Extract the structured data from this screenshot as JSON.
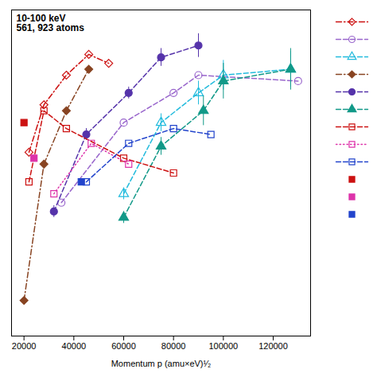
{
  "chart_data": {
    "type": "line",
    "title": "10-100 keV\n561, 923 atoms",
    "xlabel": "Momentum p (amu×eV)¹⁄₂",
    "xlim": [
      15000,
      135000
    ],
    "xticks": [
      20000,
      40000,
      60000,
      80000,
      100000,
      120000
    ],
    "ylim": [
      0.0,
      1.1
    ],
    "tick_labels": "x",
    "grid": false,
    "legend": "right",
    "series": [
      {
        "color": "#cc1111",
        "marker": "diamond-open",
        "line_style": "dashdot",
        "x": [
          22000,
          28000,
          37000,
          46000,
          54000
        ],
        "values": [
          0.62,
          0.78,
          0.88,
          0.95,
          0.92
        ]
      },
      {
        "color": "#9966cc",
        "marker": "circle-open",
        "line_style": "dashed",
        "x": [
          35000,
          60000,
          80000,
          90000,
          130000
        ],
        "values": [
          0.45,
          0.72,
          0.82,
          0.88,
          0.86
        ]
      },
      {
        "color": "#22bbdd",
        "marker": "triangle-open",
        "line_style": "dashed",
        "x": [
          60000,
          75000,
          90000,
          100000,
          127000
        ],
        "values": [
          0.48,
          0.72,
          0.82,
          0.88,
          0.9
        ],
        "yerr": [
          0.02,
          0.03,
          0.04,
          0.05,
          0.06
        ]
      },
      {
        "color": "#884422",
        "marker": "diamond",
        "line_style": "dashdot",
        "x": [
          20000,
          28000,
          37000,
          46000
        ],
        "values": [
          0.12,
          0.58,
          0.76,
          0.9
        ]
      },
      {
        "color": "#5533aa",
        "marker": "circle",
        "line_style": "dashed",
        "x": [
          32000,
          45000,
          62000,
          75000,
          90000
        ],
        "values": [
          0.42,
          0.68,
          0.82,
          0.94,
          0.98
        ],
        "yerr": [
          0.02,
          0.02,
          0.02,
          0.03,
          0.04
        ]
      },
      {
        "color": "#119988",
        "marker": "triangle",
        "line_style": "dashed",
        "x": [
          60000,
          75000,
          92000,
          100000,
          127000
        ],
        "values": [
          0.4,
          0.64,
          0.76,
          0.86,
          0.9
        ],
        "yerr": [
          0.02,
          0.03,
          0.05,
          0.06,
          0.07
        ]
      },
      {
        "color": "#cc1111",
        "marker": "square-open",
        "line_style": "dashed",
        "x": [
          22000,
          28000,
          37000,
          60000,
          80000
        ],
        "values": [
          0.52,
          0.76,
          0.7,
          0.6,
          0.55
        ]
      },
      {
        "color": "#dd33aa",
        "marker": "square-open",
        "line_style": "dotted",
        "x": [
          32000,
          47000,
          62000
        ],
        "values": [
          0.48,
          0.65,
          0.58
        ]
      },
      {
        "color": "#2244cc",
        "marker": "square-open",
        "line_style": "dashed",
        "x": [
          45000,
          62000,
          80000,
          95000
        ],
        "values": [
          0.52,
          0.65,
          0.7,
          0.68
        ]
      },
      {
        "color": "#cc1111",
        "marker": "square",
        "line_style": "none",
        "x": [
          20000
        ],
        "values": [
          0.72
        ]
      },
      {
        "color": "#dd33aa",
        "marker": "square",
        "line_style": "none",
        "x": [
          24000
        ],
        "values": [
          0.6
        ]
      },
      {
        "color": "#2244cc",
        "marker": "square",
        "line_style": "none",
        "x": [
          43000
        ],
        "values": [
          0.52
        ]
      }
    ]
  }
}
